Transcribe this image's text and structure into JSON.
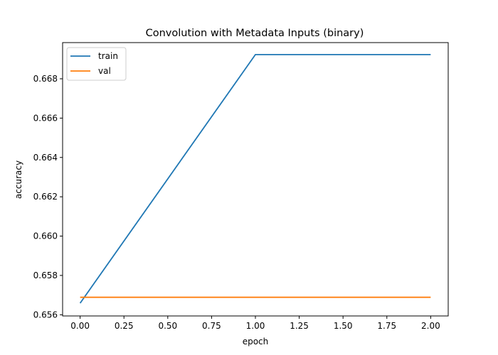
{
  "chart_data": {
    "type": "line",
    "title": "Convolution with Metadata Inputs (binary)",
    "xlabel": "epoch",
    "ylabel": "accuracy",
    "x": [
      0.0,
      1.0,
      2.0
    ],
    "xticks": [
      0.0,
      0.25,
      0.5,
      0.75,
      1.0,
      1.25,
      1.5,
      1.75,
      2.0
    ],
    "xtick_labels": [
      "0.00",
      "0.25",
      "0.50",
      "0.75",
      "1.00",
      "1.25",
      "1.50",
      "1.75",
      "2.00"
    ],
    "yticks": [
      0.656,
      0.658,
      0.66,
      0.662,
      0.664,
      0.666,
      0.668
    ],
    "ytick_labels": [
      "0.656",
      "0.658",
      "0.660",
      "0.662",
      "0.664",
      "0.666",
      "0.668"
    ],
    "xlim": [
      -0.1,
      2.1
    ],
    "ylim": [
      0.65594,
      0.66984
    ],
    "grid": false,
    "legend_position": "upper left",
    "series": [
      {
        "name": "train",
        "color": "#1f77b4",
        "values": [
          0.65659,
          0.66923,
          0.66923
        ]
      },
      {
        "name": "val",
        "color": "#ff7f0e",
        "values": [
          0.65689,
          0.65689,
          0.65689
        ]
      }
    ]
  }
}
